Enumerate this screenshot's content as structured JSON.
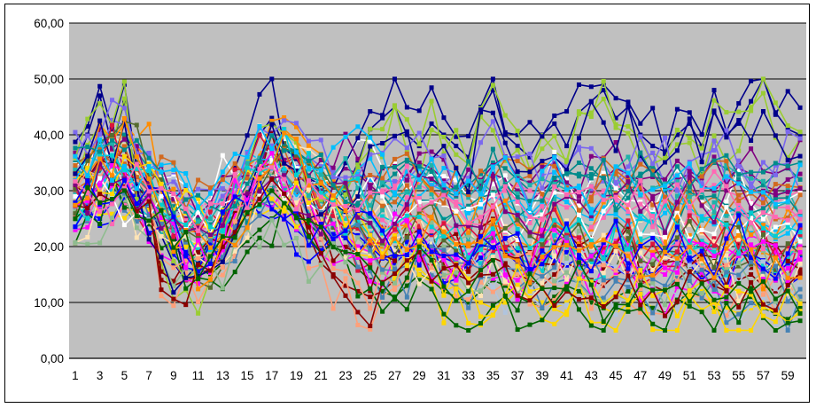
{
  "chart_data": {
    "type": "line",
    "title": "",
    "xlabel": "",
    "ylabel": "",
    "ylim": [
      0,
      60
    ],
    "y_ticks": [
      "0,00",
      "10,00",
      "20,00",
      "30,00",
      "40,00",
      "50,00",
      "60,00"
    ],
    "x_ticks": [
      "1",
      "3",
      "5",
      "7",
      "9",
      "11",
      "13",
      "15",
      "17",
      "19",
      "21",
      "23",
      "25",
      "27",
      "29",
      "31",
      "33",
      "35",
      "37",
      "39",
      "41",
      "43",
      "45",
      "47",
      "49",
      "51",
      "53",
      "55",
      "57",
      "59"
    ],
    "x_count": 60,
    "grid": "horizontal",
    "legend": "none",
    "plot_background": "#c0c0c0",
    "series_note_count": 60,
    "series": [
      {
        "values": [
          34,
          40,
          47,
          38,
          46,
          31,
          28,
          22,
          17,
          14,
          15,
          16,
          20,
          28,
          35,
          40,
          43,
          38,
          36,
          32,
          30,
          28,
          30,
          35,
          41,
          43,
          45,
          40,
          38,
          42,
          40,
          38,
          36,
          44,
          48,
          40,
          38,
          36,
          40,
          42,
          38,
          44,
          46,
          48,
          43,
          45,
          40,
          38,
          37,
          40,
          42,
          38,
          44,
          40,
          42,
          46,
          50,
          44,
          41,
          40
        ]
      },
      {
        "values": [
          30,
          28,
          32,
          36,
          33,
          30,
          26,
          25,
          22,
          18,
          19,
          20,
          24,
          30,
          33,
          36,
          34,
          32,
          30,
          28,
          26,
          24,
          22,
          20,
          19,
          21,
          23,
          25,
          22,
          20,
          19,
          18,
          20,
          22,
          21,
          19,
          18,
          17,
          20,
          22,
          20,
          18,
          17,
          19,
          21,
          20,
          18,
          16,
          15,
          18,
          20,
          21,
          19,
          18,
          20,
          22,
          21,
          19,
          18,
          20
        ]
      },
      {
        "values": [
          28,
          30,
          27,
          29,
          31,
          33,
          30,
          27,
          25,
          26,
          24,
          23,
          25,
          27,
          29,
          31,
          30,
          28,
          27,
          29,
          30,
          28,
          26,
          24,
          22,
          20,
          19,
          18,
          16,
          14,
          12,
          13,
          11,
          10,
          9,
          10,
          12,
          11,
          10,
          9,
          10,
          12,
          11,
          9,
          8,
          10,
          11,
          9,
          8,
          10,
          11,
          12,
          10,
          9,
          8,
          9,
          10,
          8,
          7,
          8
        ]
      },
      {
        "values": [
          26,
          25,
          30,
          34,
          32,
          28,
          27,
          26,
          24,
          22,
          20,
          21,
          23,
          26,
          28,
          30,
          32,
          34,
          33,
          31,
          29,
          27,
          25,
          26,
          24,
          22,
          21,
          20,
          19,
          21,
          22,
          20,
          18,
          17,
          19,
          20,
          18,
          17,
          19,
          18,
          20,
          19,
          17,
          18,
          20,
          19,
          21,
          22,
          20,
          18,
          19,
          21,
          20,
          18,
          17,
          19,
          20,
          18,
          17,
          18
        ]
      },
      {
        "values": [
          33,
          32,
          35,
          37,
          36,
          34,
          31,
          29,
          27,
          25,
          24,
          26,
          28,
          30,
          32,
          34,
          36,
          35,
          33,
          31,
          30,
          32,
          34,
          33,
          31,
          29,
          31,
          33,
          35,
          34,
          32,
          30,
          29,
          31,
          33,
          32,
          30,
          28,
          30,
          32,
          31,
          29,
          30,
          32,
          34,
          33,
          31,
          29,
          30,
          32,
          33,
          31,
          30,
          32,
          34,
          33,
          31,
          30,
          32,
          33
        ]
      },
      {
        "values": [
          31,
          29,
          34,
          32,
          30,
          29,
          28,
          14,
          13,
          14,
          15,
          16,
          18,
          24,
          27,
          30,
          32,
          31,
          30,
          22,
          17,
          15,
          13,
          12,
          11,
          12,
          14,
          16,
          20,
          18,
          17,
          15,
          14,
          16,
          18,
          17,
          15,
          14,
          13,
          15,
          17,
          16,
          14,
          13,
          15,
          16,
          14,
          13,
          12,
          14,
          16,
          15,
          13,
          12,
          14,
          15,
          13,
          12,
          14,
          15
        ]
      },
      {
        "values": [
          35,
          36,
          38,
          41,
          40,
          37,
          34,
          31,
          29,
          27,
          25,
          24,
          26,
          29,
          31,
          34,
          36,
          38,
          37,
          35,
          33,
          31,
          29,
          27,
          29,
          31,
          33,
          35,
          34,
          32,
          30,
          29,
          31,
          33,
          35,
          34,
          32,
          30,
          29,
          31,
          33,
          35,
          34,
          32,
          30,
          31,
          33,
          34,
          32,
          30,
          31,
          33,
          35,
          34,
          32,
          30,
          31,
          33,
          34,
          32
        ]
      },
      {
        "values": [
          27,
          26,
          25,
          28,
          30,
          29,
          27,
          24,
          21,
          19,
          17,
          18,
          20,
          23,
          26,
          28,
          27,
          25,
          23,
          21,
          19,
          21,
          23,
          22,
          20,
          18,
          17,
          19,
          21,
          20,
          18,
          17,
          16,
          18,
          20,
          19,
          17,
          16,
          18,
          20,
          19,
          17,
          16,
          18,
          19,
          17,
          16,
          15,
          17,
          19,
          18,
          16,
          15,
          17,
          19,
          18,
          16,
          15,
          17,
          18
        ]
      },
      {
        "values": [
          29,
          31,
          33,
          30,
          28,
          27,
          29,
          31,
          30,
          28,
          26,
          27,
          29,
          31,
          33,
          35,
          34,
          32,
          30,
          28,
          27,
          29,
          31,
          33,
          32,
          30,
          28,
          27,
          29,
          31,
          30,
          28,
          26,
          27,
          29,
          28,
          26,
          25,
          27,
          29,
          28,
          26,
          25,
          27,
          28,
          26,
          25,
          24,
          26,
          28,
          27,
          25,
          24,
          26,
          27,
          25,
          24,
          23,
          25,
          26
        ]
      },
      {
        "values": [
          32,
          33,
          36,
          39,
          42,
          38,
          35,
          30,
          26,
          22,
          19,
          18,
          21,
          25,
          29,
          33,
          37,
          41,
          39,
          36,
          33,
          30,
          27,
          24,
          22,
          20,
          22,
          24,
          26,
          25,
          23,
          21,
          20,
          22,
          24,
          23,
          21,
          20,
          22,
          24,
          23,
          21,
          20,
          22,
          23,
          21,
          20,
          19,
          21,
          23,
          22,
          20,
          19,
          21,
          22,
          20,
          19,
          18,
          20,
          21
        ]
      },
      {
        "values": [
          30,
          30,
          31,
          32,
          33,
          32,
          31,
          30,
          29,
          28,
          27,
          28,
          29,
          30,
          31,
          32,
          33,
          32,
          31,
          30,
          29,
          28,
          27,
          28,
          29,
          30,
          31,
          32,
          31,
          30,
          29,
          28,
          27,
          28,
          29,
          30,
          31,
          30,
          29,
          28,
          27,
          28,
          29,
          30,
          31,
          30,
          29,
          28,
          27,
          28,
          29,
          30,
          31,
          30,
          29,
          28,
          27,
          28,
          29,
          30
        ]
      },
      {
        "values": [
          25,
          27,
          29,
          31,
          28,
          26,
          24,
          22,
          20,
          18,
          16,
          15,
          17,
          19,
          21,
          23,
          25,
          27,
          26,
          24,
          22,
          20,
          18,
          16,
          14,
          12,
          11,
          13,
          15,
          14,
          12,
          11,
          10,
          12,
          14,
          13,
          11,
          10,
          9,
          11,
          13,
          12,
          10,
          9,
          11,
          12,
          10,
          9,
          8,
          10,
          12,
          11,
          9,
          8,
          10,
          11,
          9,
          8,
          7,
          9
        ]
      }
    ],
    "colors": [
      "#00008b",
      "#ff00ff",
      "#ffd700",
      "#00ced1",
      "#800080",
      "#8b0000",
      "#008b8b",
      "#0000ff",
      "#00bfff",
      "#ff8c00",
      "#ff69b4",
      "#006400",
      "#9acd32",
      "#dc143c",
      "#b0c4de",
      "#ffe4b5",
      "#20b2aa",
      "#ffa07a",
      "#7b68ee",
      "#8fbc8f",
      "#ffffff",
      "#556b2f",
      "#d2691e",
      "#4682b4"
    ]
  }
}
